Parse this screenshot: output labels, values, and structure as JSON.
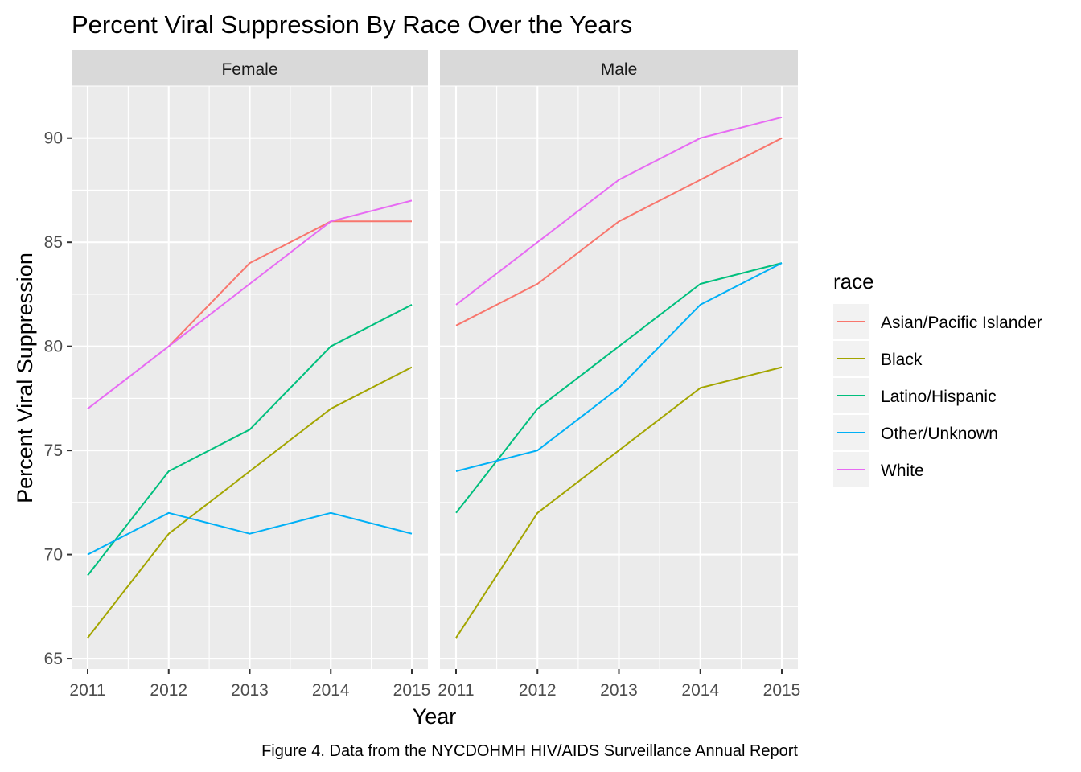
{
  "chart_data": {
    "type": "line",
    "title": "Percent Viral Suppression By Race Over the Years",
    "xlabel": "Year",
    "ylabel": "Percent Viral Suppression",
    "caption": "Figure 4. Data from the NYCDOHMH HIV/AIDS Surveillance Annual Report",
    "x": [
      2011,
      2012,
      2013,
      2014,
      2015
    ],
    "xlim": [
      2011,
      2015
    ],
    "ylim": [
      65,
      92.5
    ],
    "yticks": [
      65,
      70,
      75,
      80,
      85,
      90
    ],
    "grid": true,
    "legend": {
      "title": "race",
      "position": "right",
      "entries": [
        {
          "label": "Asian/Pacific Islander",
          "color": "#F8766D"
        },
        {
          "label": "Black",
          "color": "#A3A500"
        },
        {
          "label": "Latino/Hispanic",
          "color": "#00BF7D"
        },
        {
          "label": "Other/Unknown",
          "color": "#00B0F6"
        },
        {
          "label": "White",
          "color": "#E76BF3"
        }
      ]
    },
    "facets": [
      {
        "label": "Female",
        "series": [
          {
            "name": "Asian/Pacific Islander",
            "values": [
              null,
              80,
              84,
              86,
              86
            ]
          },
          {
            "name": "Black",
            "values": [
              66,
              71,
              74,
              77,
              79
            ]
          },
          {
            "name": "Latino/Hispanic",
            "values": [
              69,
              74,
              76,
              80,
              82
            ]
          },
          {
            "name": "Other/Unknown",
            "values": [
              70,
              72,
              71,
              72,
              71
            ]
          },
          {
            "name": "White",
            "values": [
              77,
              80,
              83,
              86,
              87
            ]
          }
        ]
      },
      {
        "label": "Male",
        "series": [
          {
            "name": "Asian/Pacific Islander",
            "values": [
              81,
              83,
              86,
              88,
              90
            ]
          },
          {
            "name": "Black",
            "values": [
              66,
              72,
              75,
              78,
              79
            ]
          },
          {
            "name": "Latino/Hispanic",
            "values": [
              72,
              77,
              80,
              83,
              84
            ]
          },
          {
            "name": "Other/Unknown",
            "values": [
              74,
              75,
              78,
              82,
              84
            ]
          },
          {
            "name": "White",
            "values": [
              82,
              85,
              88,
              90,
              91
            ]
          }
        ]
      }
    ]
  }
}
